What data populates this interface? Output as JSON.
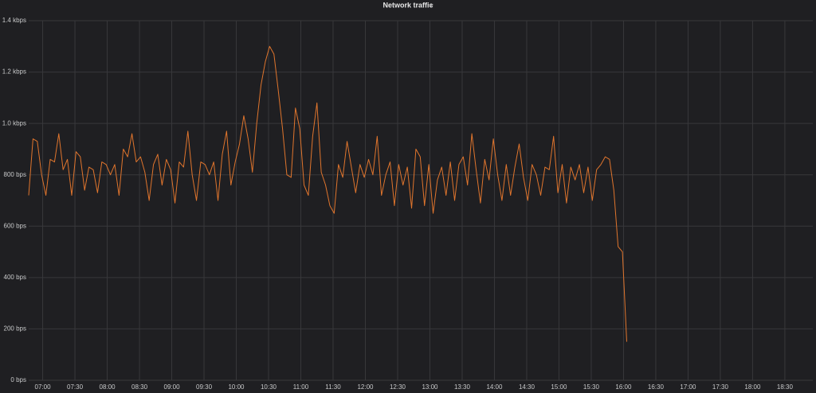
{
  "chart_data": {
    "type": "line",
    "title": "Network traffic",
    "color": "#e0752d",
    "grid": true,
    "xlim": [
      407,
      1136
    ],
    "xticks": [
      {
        "value": 420,
        "label": "07:00"
      },
      {
        "value": 450,
        "label": "07:30"
      },
      {
        "value": 480,
        "label": "08:00"
      },
      {
        "value": 510,
        "label": "08:30"
      },
      {
        "value": 540,
        "label": "09:00"
      },
      {
        "value": 570,
        "label": "09:30"
      },
      {
        "value": 600,
        "label": "10:00"
      },
      {
        "value": 630,
        "label": "10:30"
      },
      {
        "value": 660,
        "label": "11:00"
      },
      {
        "value": 690,
        "label": "11:30"
      },
      {
        "value": 720,
        "label": "12:00"
      },
      {
        "value": 750,
        "label": "12:30"
      },
      {
        "value": 780,
        "label": "13:00"
      },
      {
        "value": 810,
        "label": "13:30"
      },
      {
        "value": 840,
        "label": "14:00"
      },
      {
        "value": 870,
        "label": "14:30"
      },
      {
        "value": 900,
        "label": "15:00"
      },
      {
        "value": 930,
        "label": "15:30"
      },
      {
        "value": 960,
        "label": "16:00"
      },
      {
        "value": 990,
        "label": "16:30"
      },
      {
        "value": 1020,
        "label": "17:00"
      },
      {
        "value": 1050,
        "label": "17:30"
      },
      {
        "value": 1080,
        "label": "18:00"
      },
      {
        "value": 1110,
        "label": "18:30"
      }
    ],
    "ylim": [
      0,
      1400
    ],
    "yticks": [
      {
        "value": 0,
        "label": "0 bps"
      },
      {
        "value": 200,
        "label": "200 bps"
      },
      {
        "value": 400,
        "label": "400 bps"
      },
      {
        "value": 600,
        "label": "600 bps"
      },
      {
        "value": 800,
        "label": "800 bps"
      },
      {
        "value": 1000,
        "label": "1.0 kbps"
      },
      {
        "value": 1200,
        "label": "1.2 kbps"
      },
      {
        "value": 1400,
        "label": "1.4 kbps"
      }
    ],
    "x": [
      407,
      411,
      415,
      419,
      423,
      427,
      431,
      435,
      439,
      443,
      447,
      451,
      455,
      459,
      463,
      467,
      471,
      475,
      479,
      483,
      487,
      491,
      495,
      499,
      503,
      507,
      511,
      515,
      519,
      523,
      527,
      531,
      535,
      539,
      543,
      547,
      551,
      555,
      559,
      563,
      567,
      571,
      575,
      579,
      583,
      587,
      591,
      595,
      599,
      603,
      607,
      611,
      615,
      619,
      623,
      627,
      631,
      635,
      639,
      643,
      647,
      651,
      655,
      659,
      663,
      667,
      671,
      675,
      679,
      683,
      687,
      691,
      695,
      699,
      703,
      707,
      711,
      715,
      719,
      723,
      727,
      731,
      735,
      739,
      743,
      747,
      751,
      755,
      759,
      763,
      767,
      771,
      775,
      779,
      783,
      787,
      791,
      795,
      799,
      803,
      807,
      811,
      815,
      819,
      823,
      827,
      831,
      835,
      839,
      843,
      847,
      851,
      855,
      859,
      863,
      867,
      871,
      875,
      879,
      883,
      887,
      891,
      895,
      899,
      903,
      907,
      911,
      915,
      919,
      923,
      927,
      931,
      935,
      939,
      943,
      947,
      951,
      955,
      959,
      963
    ],
    "values": [
      720,
      940,
      930,
      800,
      720,
      860,
      850,
      960,
      820,
      860,
      720,
      890,
      870,
      740,
      830,
      820,
      730,
      850,
      840,
      800,
      840,
      720,
      900,
      870,
      960,
      850,
      870,
      810,
      700,
      840,
      880,
      760,
      860,
      820,
      690,
      850,
      830,
      970,
      800,
      700,
      850,
      840,
      800,
      850,
      700,
      880,
      970,
      760,
      850,
      920,
      1030,
      940,
      810,
      1000,
      1150,
      1240,
      1300,
      1270,
      1130,
      980,
      800,
      790,
      1060,
      980,
      760,
      720,
      950,
      1080,
      810,
      760,
      680,
      650,
      840,
      790,
      930,
      830,
      730,
      840,
      790,
      860,
      800,
      950,
      720,
      800,
      850,
      680,
      840,
      760,
      830,
      670,
      900,
      870,
      680,
      840,
      650,
      780,
      830,
      720,
      850,
      700,
      840,
      870,
      760,
      960,
      820,
      690,
      860,
      780,
      940,
      800,
      700,
      840,
      720,
      830,
      920,
      790,
      700,
      840,
      800,
      720,
      830,
      820,
      950,
      730,
      840,
      690,
      830,
      780,
      840,
      730,
      830,
      700,
      820,
      840,
      870,
      860,
      740,
      520,
      500,
      150
    ]
  }
}
